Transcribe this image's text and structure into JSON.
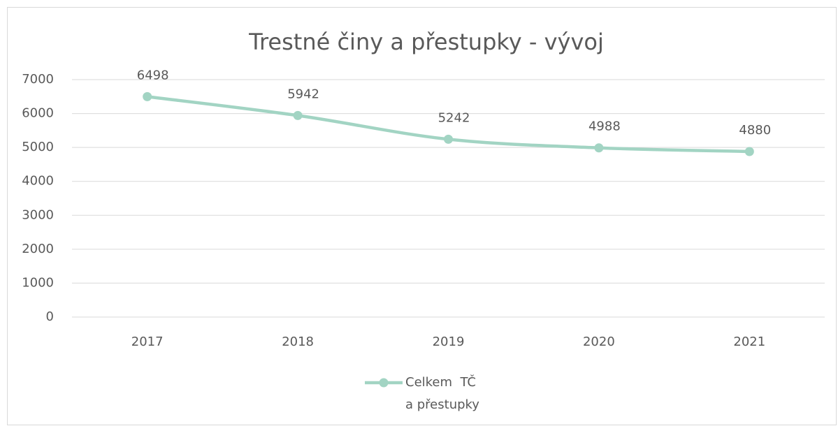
{
  "chart_data": {
    "type": "line",
    "title": "Trestné činy a přestupky -  vývoj",
    "categories": [
      "2017",
      "2018",
      "2019",
      "2020",
      "2021"
    ],
    "series": [
      {
        "name": "Celkem  TČ a přestupky",
        "color": "#a2d4c3",
        "values": [
          6498,
          5942,
          5242,
          4988,
          4880
        ]
      }
    ],
    "ylim": [
      0,
      7000
    ],
    "yticks": [
      0,
      1000,
      2000,
      3000,
      4000,
      5000,
      6000,
      7000
    ],
    "grid": true,
    "legend": "bottom"
  }
}
